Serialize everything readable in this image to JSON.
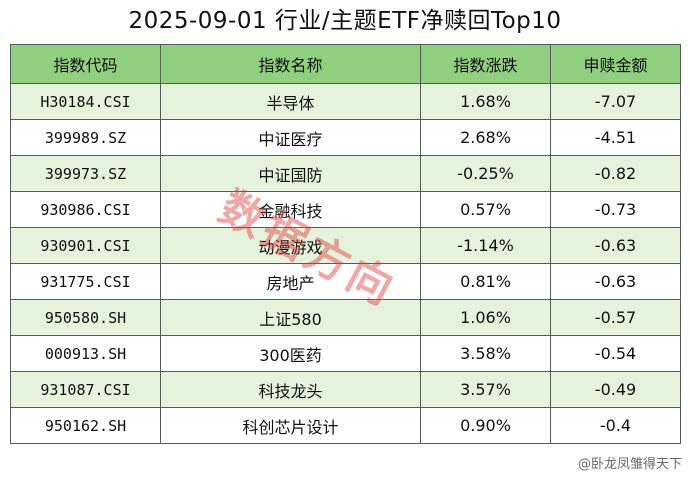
{
  "title": "2025-09-01 行业/主题ETF净赎回Top10",
  "headers": {
    "code": "指数代码",
    "name": "指数名称",
    "change": "指数涨跌",
    "redemption": "申赎金额"
  },
  "rows": [
    {
      "code": "H30184.CSI",
      "name": "半导体",
      "change": "1.68%",
      "redemption": "-7.07"
    },
    {
      "code": "399989.SZ",
      "name": "中证医疗",
      "change": "2.68%",
      "redemption": "-4.51"
    },
    {
      "code": "399973.SZ",
      "name": "中证国防",
      "change": "-0.25%",
      "redemption": "-0.82"
    },
    {
      "code": "930986.CSI",
      "name": "金融科技",
      "change": "0.57%",
      "redemption": "-0.73"
    },
    {
      "code": "930901.CSI",
      "name": "动漫游戏",
      "change": "-1.14%",
      "redemption": "-0.63"
    },
    {
      "code": "931775.CSI",
      "name": "房地产",
      "change": "0.81%",
      "redemption": "-0.63"
    },
    {
      "code": "950580.SH",
      "name": "上证580",
      "change": "1.06%",
      "redemption": "-0.57"
    },
    {
      "code": "000913.SH",
      "name": "300医药",
      "change": "3.58%",
      "redemption": "-0.54"
    },
    {
      "code": "931087.CSI",
      "name": "科技龙头",
      "change": "3.57%",
      "redemption": "-0.49"
    },
    {
      "code": "950162.SH",
      "name": "科创芯片设计",
      "change": "0.90%",
      "redemption": "-0.4"
    }
  ],
  "watermark": "数据方向",
  "footer": "@卧龙凤雏得天下",
  "colors": {
    "header_bg": "#8fcf7f",
    "odd_row_bg": "#e5f3dc",
    "even_row_bg": "#ffffff",
    "watermark": "#dc3c3c"
  }
}
